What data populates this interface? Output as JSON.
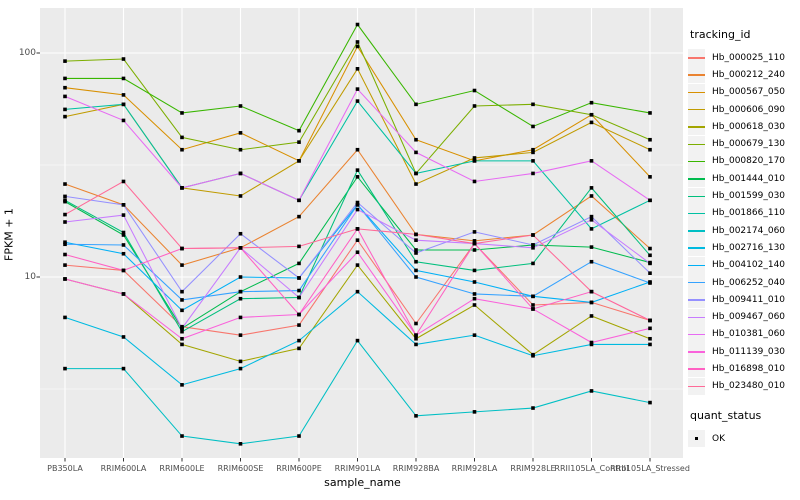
{
  "colors": {
    "panel_background": "#EBEBEB",
    "grid": "#FFFFFF",
    "axis_text": "#4D4D4D",
    "point": "#000000",
    "legend_key_background": "#F2F2F2"
  },
  "legend": {
    "title": "tracking_id"
  },
  "legend2": {
    "title": "quant_status",
    "items": [
      {
        "label": "OK",
        "glyph": "black-square-point"
      }
    ]
  },
  "chart_data": {
    "type": "line",
    "title": "",
    "xlabel": "sample_name",
    "ylabel": "FPKM + 1",
    "y_scale": "log10",
    "y_ticks": [
      10,
      100
    ],
    "ylim": [
      1.55,
      165
    ],
    "grid": "white-on-gray, minor gridlines at 3.16 and 31.6",
    "legend_position": "right",
    "point_shape": "filled-square",
    "categories": [
      "PB350LA",
      "RRIM600LA",
      "RRIM600LE",
      "RRIM600SE",
      "RRIM600PE",
      "RRIM901LA",
      "RRIM928BA",
      "RRIM928LA",
      "RRIM928LE",
      "RRII105LA_Control",
      "RRII105LA_Stressed"
    ],
    "series": [
      {
        "name": "Hb_000025_110",
        "color": "#F8766D",
        "values": [
          11.3,
          10.7,
          6.0,
          5.5,
          6.1,
          14.6,
          6.2,
          14.1,
          7.5,
          7.7,
          6.4
        ]
      },
      {
        "name": "Hb_000212_240",
        "color": "#EA8331",
        "values": [
          26,
          21,
          11.3,
          13.5,
          18.6,
          37,
          15.5,
          14.5,
          15.4,
          23,
          13.4
        ]
      },
      {
        "name": "Hb_000567_050",
        "color": "#D89000",
        "values": [
          70,
          65,
          37,
          44,
          33,
          107,
          41,
          33,
          37,
          53,
          28
        ]
      },
      {
        "name": "Hb_000606_090",
        "color": "#C09B00",
        "values": [
          52,
          59,
          25,
          23,
          33,
          85,
          26,
          34,
          36,
          49,
          37
        ]
      },
      {
        "name": "Hb_000618_030",
        "color": "#A3A500",
        "values": [
          9.8,
          8.4,
          5.0,
          4.2,
          4.8,
          11.3,
          5.3,
          7.5,
          4.5,
          6.7,
          5.3
        ]
      },
      {
        "name": "Hb_000679_130",
        "color": "#7CAE00",
        "values": [
          92,
          94,
          42,
          37,
          40,
          112,
          29,
          58,
          59,
          53,
          41
        ]
      },
      {
        "name": "Hb_000820_170",
        "color": "#39B600",
        "values": [
          77,
          77,
          54,
          58,
          45,
          134,
          59,
          68,
          47,
          60,
          54
        ]
      },
      {
        "name": "Hb_001444_010",
        "color": "#00BB4E",
        "values": [
          21.7,
          15.4,
          5.9,
          8.6,
          11.5,
          28,
          13.2,
          13.2,
          13.9,
          13.6,
          11.6
        ]
      },
      {
        "name": "Hb_001599_030",
        "color": "#00BF7D",
        "values": [
          22,
          15.8,
          5.7,
          8.0,
          8.1,
          30,
          11.7,
          10.7,
          11.5,
          25,
          12.5
        ]
      },
      {
        "name": "Hb_001866_110",
        "color": "#00C1A3",
        "values": [
          56,
          59,
          25,
          29,
          22,
          61,
          29,
          33,
          33,
          16.4,
          22
        ]
      },
      {
        "name": "Hb_002174_060",
        "color": "#00BFC4",
        "values": [
          3.9,
          3.9,
          1.95,
          1.8,
          1.95,
          5.2,
          2.4,
          2.5,
          2.6,
          3.1,
          2.75
        ]
      },
      {
        "name": "Hb_002716_130",
        "color": "#00BAE0",
        "values": [
          6.6,
          5.4,
          3.3,
          3.9,
          5.2,
          8.6,
          5.0,
          5.5,
          4.45,
          5.0,
          5.0
        ]
      },
      {
        "name": "Hb_004102_140",
        "color": "#00B0F6",
        "values": [
          14.3,
          12.7,
          7.1,
          10.0,
          9.9,
          21,
          10.7,
          9.5,
          8.2,
          7.7,
          9.5
        ]
      },
      {
        "name": "Hb_006252_040",
        "color": "#35A2FF",
        "values": [
          14.0,
          13.9,
          7.9,
          8.6,
          8.7,
          21,
          10.0,
          8.4,
          8.2,
          11.7,
          9.4
        ]
      },
      {
        "name": "Hb_009411_010",
        "color": "#9590FF",
        "values": [
          22.9,
          21,
          8.6,
          15.6,
          9.9,
          21.5,
          12.8,
          15.9,
          13.9,
          18.6,
          10.4
        ]
      },
      {
        "name": "Hb_009467_060",
        "color": "#C77CFF",
        "values": [
          17.6,
          18.9,
          5.9,
          13.5,
          8.1,
          20,
          14.6,
          14.1,
          13.5,
          18.0,
          11.5
        ]
      },
      {
        "name": "Hb_010381_060",
        "color": "#E76BF3",
        "values": [
          64,
          50,
          25,
          29,
          22,
          69,
          36,
          26.7,
          29,
          33,
          22
        ]
      },
      {
        "name": "Hb_011139_030",
        "color": "#FA62DB",
        "values": [
          9.8,
          8.4,
          5.3,
          6.6,
          6.8,
          12.9,
          5.5,
          8.0,
          7.2,
          5.1,
          5.9
        ]
      },
      {
        "name": "Hb_016898_010",
        "color": "#FF61C3",
        "values": [
          12.6,
          10.7,
          13.4,
          13.5,
          6.8,
          16.4,
          5.5,
          14.1,
          7.2,
          8.6,
          6.4
        ]
      },
      {
        "name": "Hb_023480_010",
        "color": "#FF6A98",
        "values": [
          19,
          26.7,
          13.4,
          13.5,
          13.7,
          16.4,
          15.5,
          14.1,
          15.4,
          8.6,
          6.4
        ]
      }
    ]
  }
}
